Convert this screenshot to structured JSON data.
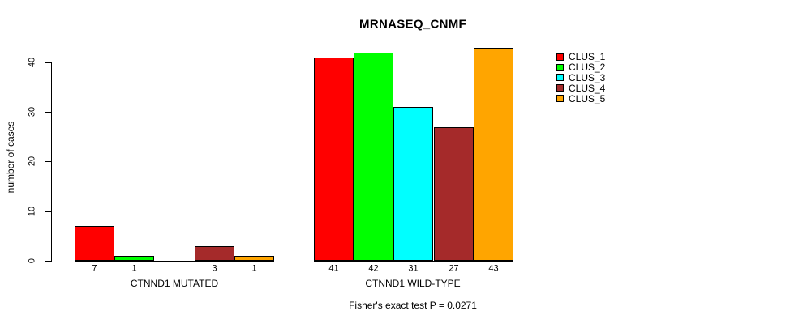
{
  "chart_data": {
    "type": "bar",
    "title": "MRNASEQ_CNMF",
    "ylabel": "number of cases",
    "xlabel": "Fisher's exact test P = 0.0271",
    "ylim": [
      0,
      40
    ],
    "yticks": [
      0,
      10,
      20,
      30,
      40
    ],
    "grid": false,
    "legend_position": "right-outside-top",
    "series_names": [
      "CLUS_1",
      "CLUS_2",
      "CLUS_3",
      "CLUS_4",
      "CLUS_5"
    ],
    "series_colors": [
      "#FF0000",
      "#00FF00",
      "#00FFFF",
      "#A52A2A",
      "#FFA500"
    ],
    "groups": [
      {
        "label": "CTNND1 MUTATED",
        "values": [
          7,
          1,
          0,
          3,
          1
        ],
        "bar_labels": [
          "7",
          "1",
          "",
          "3",
          "1"
        ]
      },
      {
        "label": "CTNND1 WILD-TYPE",
        "values": [
          41,
          42,
          31,
          27,
          43
        ],
        "bar_labels": [
          "41",
          "42",
          "31",
          "27",
          "43"
        ]
      }
    ]
  }
}
